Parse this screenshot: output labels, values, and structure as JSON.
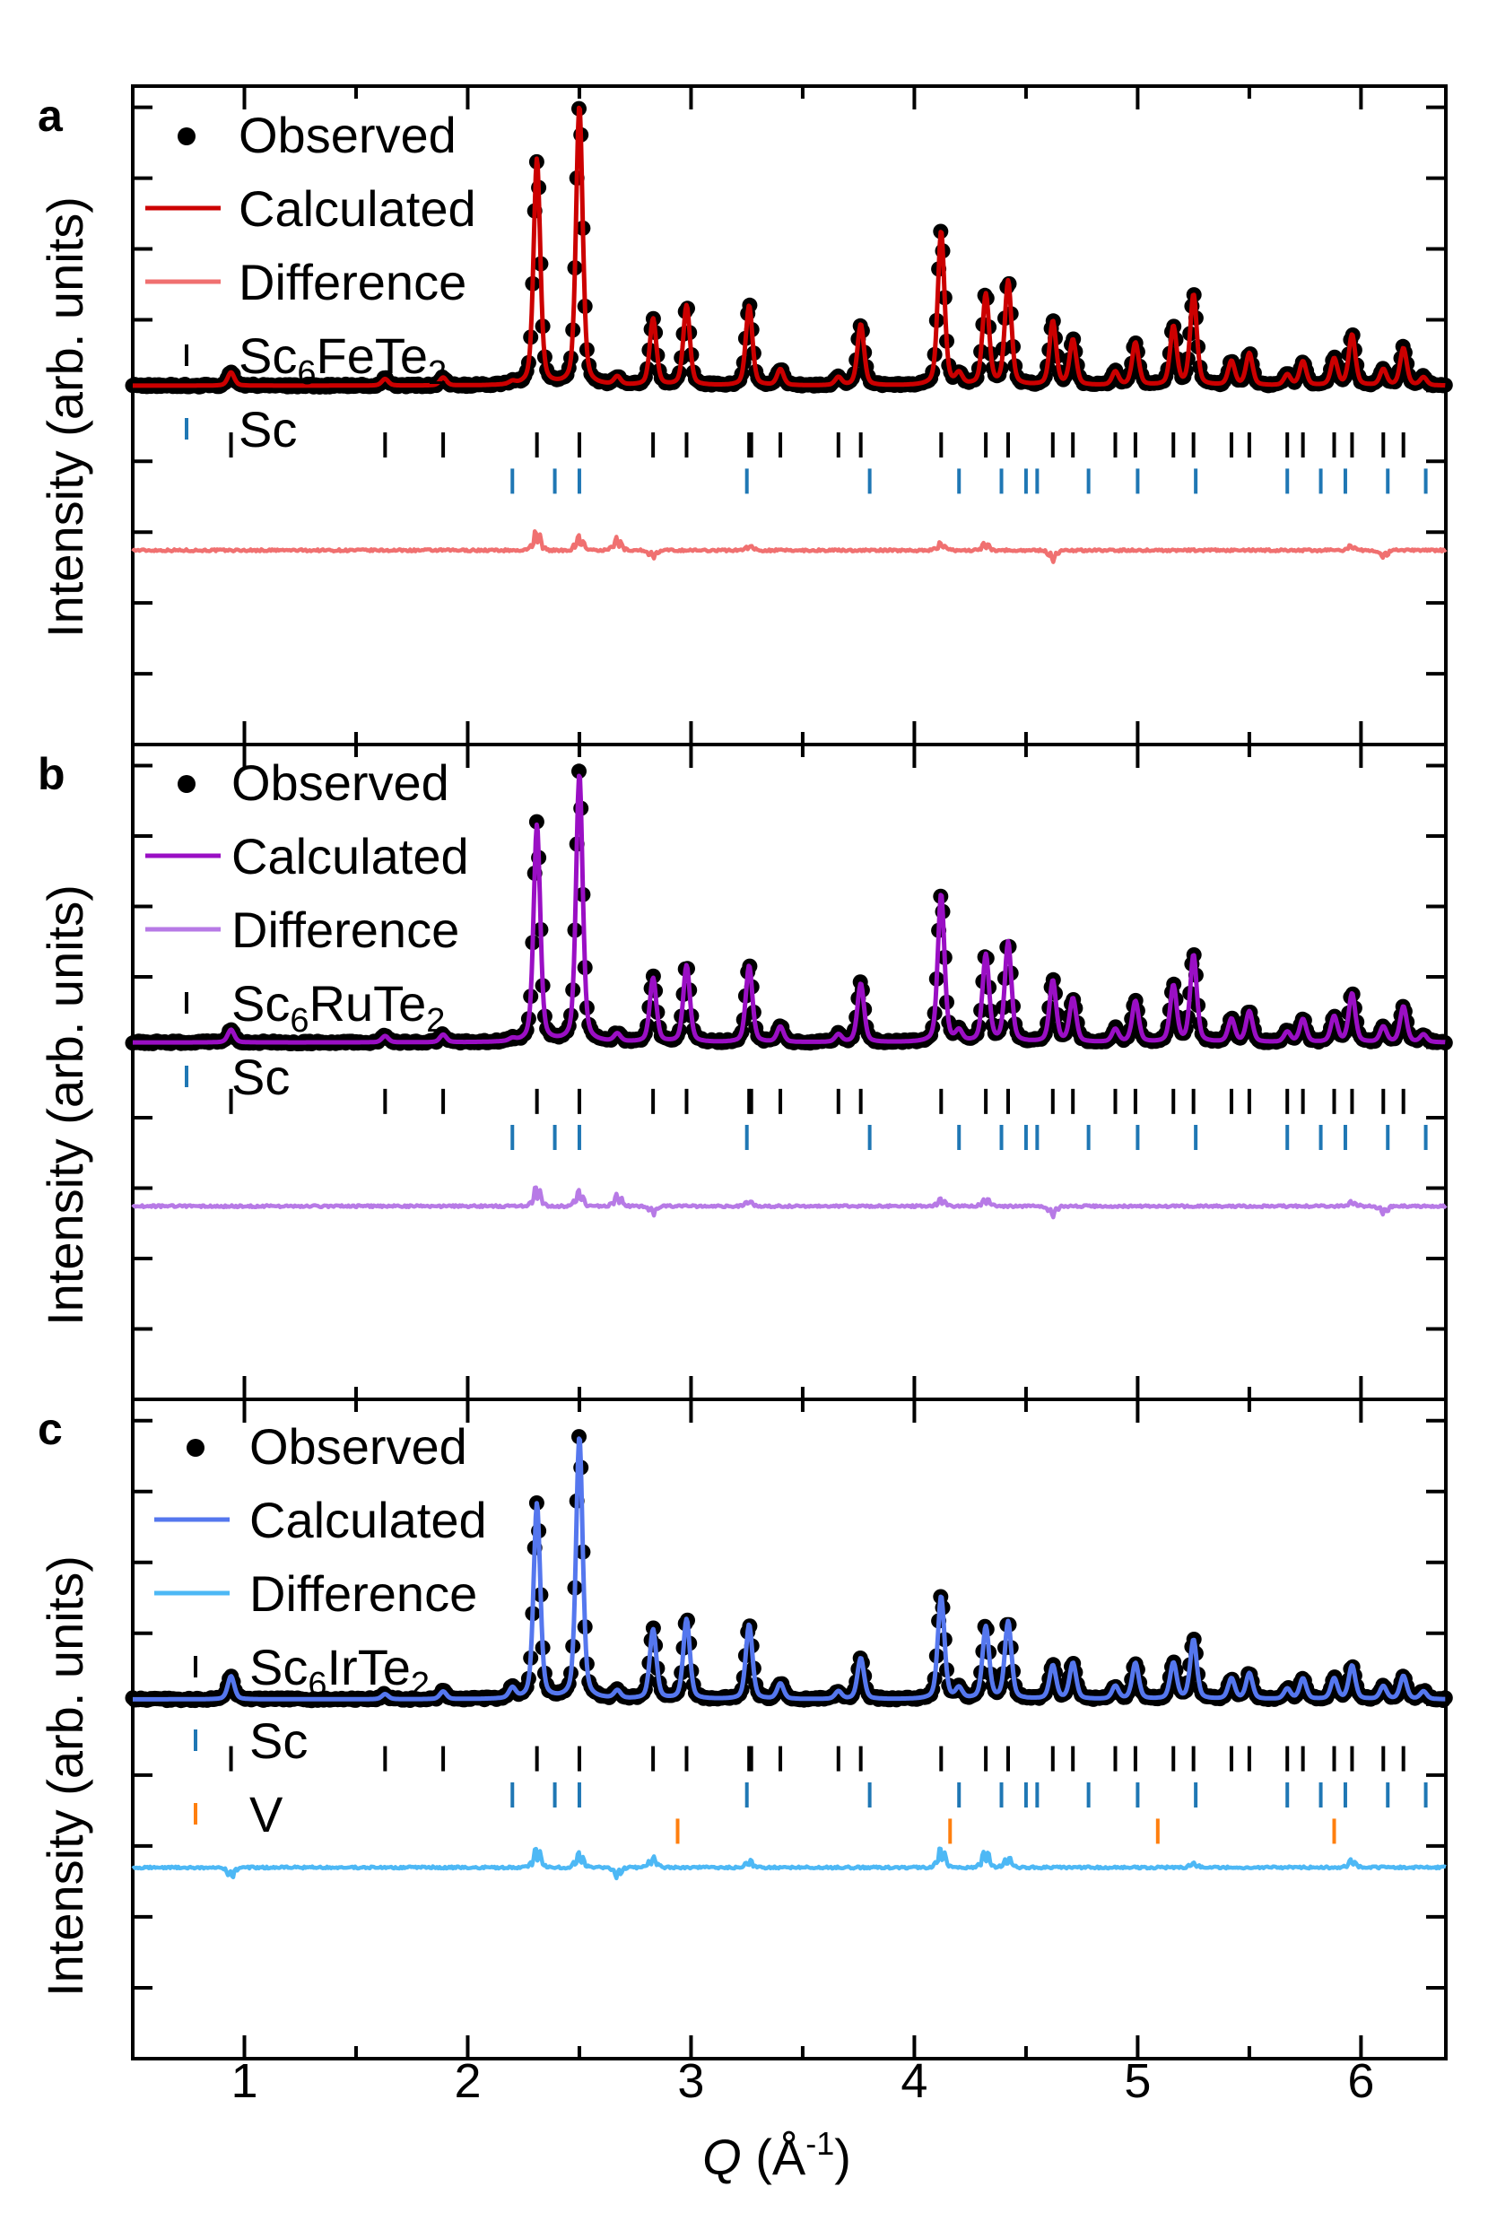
{
  "figure": {
    "xlabel": "Q (Å⁻¹)",
    "xlabel_italic": "Q",
    "xlabel_rest": " (Å",
    "xlabel_sup": "-1",
    "xlabel_close": ")",
    "ylabel": "Intensity (arb. units)",
    "x_ticks": [
      "1",
      "2",
      "3",
      "4",
      "5",
      "6"
    ]
  },
  "chart_data": [
    {
      "panel": "a",
      "type": "line",
      "xlim": [
        0.5,
        6.38
      ],
      "ylabel": "Intensity (arb. units)",
      "grid": false,
      "legend_placement": "top-left",
      "legend": [
        {
          "label": "Observed",
          "kind": "marker",
          "color": "#000000"
        },
        {
          "label": "Calculated",
          "kind": "line",
          "color": "#cc0000"
        },
        {
          "label": "Difference",
          "kind": "line",
          "color": "#f07070"
        },
        {
          "label": "Sc6FeTe2",
          "base": "Sc",
          "sub1": "6",
          "mid": "FeTe",
          "sub2": "2",
          "kind": "tick",
          "color": "#000000"
        },
        {
          "label": "Sc",
          "kind": "tick",
          "color": "#1f77b4"
        }
      ],
      "series_colors": {
        "calculated": "#cc0000",
        "difference": "#f07070"
      },
      "peaks": [
        [
          0.94,
          0.05
        ],
        [
          1.63,
          0.025
        ],
        [
          1.89,
          0.03
        ],
        [
          2.2,
          0.01
        ],
        [
          2.31,
          0.85
        ],
        [
          2.5,
          1.05
        ],
        [
          2.67,
          0.03
        ],
        [
          2.83,
          0.25
        ],
        [
          2.98,
          0.3
        ],
        [
          3.26,
          0.3
        ],
        [
          3.4,
          0.06
        ],
        [
          3.66,
          0.03
        ],
        [
          3.76,
          0.23
        ],
        [
          4.12,
          0.58
        ],
        [
          4.2,
          0.04
        ],
        [
          4.32,
          0.34
        ],
        [
          4.42,
          0.39
        ],
        [
          4.62,
          0.24
        ],
        [
          4.71,
          0.17
        ],
        [
          4.9,
          0.05
        ],
        [
          4.99,
          0.16
        ],
        [
          5.16,
          0.22
        ],
        [
          5.25,
          0.34
        ],
        [
          5.42,
          0.09
        ],
        [
          5.5,
          0.12
        ],
        [
          5.67,
          0.04
        ],
        [
          5.74,
          0.09
        ],
        [
          5.88,
          0.1
        ],
        [
          5.96,
          0.19
        ],
        [
          6.1,
          0.06
        ],
        [
          6.19,
          0.14
        ],
        [
          6.28,
          0.03
        ]
      ],
      "reflections": [
        {
          "phase": "Sc6FeTe2",
          "color": "#000000",
          "q": [
            0.94,
            1.63,
            1.89,
            2.31,
            2.5,
            2.83,
            2.98,
            3.26,
            3.27,
            3.4,
            3.66,
            3.76,
            4.12,
            4.32,
            4.42,
            4.62,
            4.71,
            4.9,
            4.99,
            5.16,
            5.25,
            5.42,
            5.5,
            5.67,
            5.74,
            5.88,
            5.96,
            6.1,
            6.19
          ]
        },
        {
          "phase": "Sc",
          "color": "#1f77b4",
          "q": [
            2.2,
            2.39,
            2.5,
            3.25,
            3.8,
            4.2,
            4.39,
            4.5,
            4.55,
            4.78,
            5.0,
            5.26,
            5.67,
            5.82,
            5.93,
            6.12,
            6.29
          ]
        }
      ],
      "difference_features": [
        [
          2.31,
          0.04
        ],
        [
          2.5,
          0.03
        ],
        [
          2.67,
          0.025
        ],
        [
          2.83,
          -0.015
        ],
        [
          3.26,
          0.01
        ],
        [
          4.12,
          0.015
        ],
        [
          4.32,
          0.015
        ],
        [
          4.62,
          -0.02
        ],
        [
          5.96,
          0.01
        ],
        [
          6.1,
          -0.015
        ]
      ]
    },
    {
      "panel": "b",
      "type": "line",
      "xlim": [
        0.5,
        6.38
      ],
      "ylabel": "Intensity (arb. units)",
      "grid": false,
      "legend_placement": "top-left",
      "legend": [
        {
          "label": "Observed",
          "kind": "marker",
          "color": "#000000"
        },
        {
          "label": "Calculated",
          "kind": "line",
          "color": "#9a0fc4"
        },
        {
          "label": "Difference",
          "kind": "line",
          "color": "#b77ae6"
        },
        {
          "label": "Sc6RuTe2",
          "base": "Sc",
          "sub1": "6",
          "mid": "RuTe",
          "sub2": "2",
          "kind": "tick",
          "color": "#000000"
        },
        {
          "label": "Sc",
          "kind": "tick",
          "color": "#1f77b4"
        }
      ],
      "series_colors": {
        "calculated": "#9a0fc4",
        "difference": "#b77ae6"
      },
      "peaks": [
        [
          0.94,
          0.05
        ],
        [
          1.63,
          0.025
        ],
        [
          1.89,
          0.03
        ],
        [
          2.2,
          0.01
        ],
        [
          2.31,
          0.85
        ],
        [
          2.5,
          1.05
        ],
        [
          2.67,
          0.03
        ],
        [
          2.83,
          0.25
        ],
        [
          2.98,
          0.3
        ],
        [
          3.26,
          0.3
        ],
        [
          3.4,
          0.06
        ],
        [
          3.66,
          0.03
        ],
        [
          3.76,
          0.23
        ],
        [
          4.12,
          0.58
        ],
        [
          4.2,
          0.04
        ],
        [
          4.32,
          0.34
        ],
        [
          4.42,
          0.39
        ],
        [
          4.62,
          0.24
        ],
        [
          4.71,
          0.17
        ],
        [
          4.9,
          0.05
        ],
        [
          4.99,
          0.16
        ],
        [
          5.16,
          0.22
        ],
        [
          5.25,
          0.34
        ],
        [
          5.42,
          0.09
        ],
        [
          5.5,
          0.12
        ],
        [
          5.67,
          0.04
        ],
        [
          5.74,
          0.09
        ],
        [
          5.88,
          0.1
        ],
        [
          5.96,
          0.19
        ],
        [
          6.1,
          0.06
        ],
        [
          6.19,
          0.14
        ],
        [
          6.28,
          0.03
        ]
      ],
      "reflections": [
        {
          "phase": "Sc6RuTe2",
          "color": "#000000",
          "q": [
            0.94,
            1.63,
            1.89,
            2.31,
            2.5,
            2.83,
            2.98,
            3.26,
            3.27,
            3.4,
            3.66,
            3.76,
            4.12,
            4.32,
            4.42,
            4.62,
            4.71,
            4.9,
            4.99,
            5.16,
            5.25,
            5.42,
            5.5,
            5.67,
            5.74,
            5.88,
            5.96,
            6.1,
            6.19
          ]
        },
        {
          "phase": "Sc",
          "color": "#1f77b4",
          "q": [
            2.2,
            2.39,
            2.5,
            3.25,
            3.8,
            4.2,
            4.39,
            4.5,
            4.55,
            4.78,
            5.0,
            5.26,
            5.67,
            5.82,
            5.93,
            6.12,
            6.29
          ]
        }
      ],
      "difference_features": [
        [
          2.31,
          0.04
        ],
        [
          2.5,
          0.03
        ],
        [
          2.67,
          0.025
        ],
        [
          2.83,
          -0.015
        ],
        [
          3.26,
          0.01
        ],
        [
          4.12,
          0.015
        ],
        [
          4.32,
          0.015
        ],
        [
          4.62,
          -0.02
        ],
        [
          5.96,
          0.01
        ],
        [
          6.1,
          -0.015
        ]
      ]
    },
    {
      "panel": "c",
      "type": "line",
      "xlim": [
        0.5,
        6.38
      ],
      "ylabel": "Intensity (arb. units)",
      "grid": false,
      "legend_placement": "top-left",
      "legend": [
        {
          "label": "Observed",
          "kind": "marker",
          "color": "#000000"
        },
        {
          "label": "Calculated",
          "kind": "line",
          "color": "#5577ee"
        },
        {
          "label": "Difference",
          "kind": "line",
          "color": "#4db8f5"
        },
        {
          "label": "Sc6IrTe2",
          "base": "Sc",
          "sub1": "6",
          "mid": "IrTe",
          "sub2": "2",
          "kind": "tick",
          "color": "#000000"
        },
        {
          "label": "Sc",
          "kind": "tick",
          "color": "#1f77b4"
        },
        {
          "label": "V",
          "kind": "tick",
          "color": "#ff7f0e"
        }
      ],
      "series_colors": {
        "calculated": "#5577ee",
        "difference": "#4db8f5"
      },
      "peaks": [
        [
          0.94,
          0.09
        ],
        [
          1.63,
          0.02
        ],
        [
          1.89,
          0.03
        ],
        [
          2.2,
          0.04
        ],
        [
          2.31,
          0.76
        ],
        [
          2.5,
          1.02
        ],
        [
          2.67,
          0.03
        ],
        [
          2.83,
          0.27
        ],
        [
          2.98,
          0.31
        ],
        [
          3.26,
          0.29
        ],
        [
          3.4,
          0.06
        ],
        [
          3.66,
          0.03
        ],
        [
          3.76,
          0.16
        ],
        [
          4.12,
          0.4
        ],
        [
          4.2,
          0.04
        ],
        [
          4.32,
          0.28
        ],
        [
          4.42,
          0.3
        ],
        [
          4.62,
          0.13
        ],
        [
          4.71,
          0.14
        ],
        [
          4.9,
          0.05
        ],
        [
          4.99,
          0.14
        ],
        [
          5.16,
          0.14
        ],
        [
          5.25,
          0.23
        ],
        [
          5.42,
          0.08
        ],
        [
          5.5,
          0.1
        ],
        [
          5.67,
          0.04
        ],
        [
          5.74,
          0.08
        ],
        [
          5.88,
          0.08
        ],
        [
          5.96,
          0.13
        ],
        [
          6.1,
          0.05
        ],
        [
          6.19,
          0.09
        ],
        [
          6.28,
          0.03
        ]
      ],
      "reflections": [
        {
          "phase": "Sc6IrTe2",
          "color": "#000000",
          "q": [
            0.94,
            1.63,
            1.89,
            2.31,
            2.5,
            2.83,
            2.98,
            3.26,
            3.27,
            3.4,
            3.66,
            3.76,
            4.12,
            4.32,
            4.42,
            4.62,
            4.71,
            4.9,
            4.99,
            5.16,
            5.25,
            5.42,
            5.5,
            5.67,
            5.74,
            5.88,
            5.96,
            6.1,
            6.19
          ]
        },
        {
          "phase": "Sc",
          "color": "#1f77b4",
          "q": [
            2.2,
            2.39,
            2.5,
            3.25,
            3.8,
            4.2,
            4.39,
            4.5,
            4.55,
            4.78,
            5.0,
            5.26,
            5.67,
            5.82,
            5.93,
            6.12,
            6.29
          ]
        },
        {
          "phase": "V",
          "color": "#ff7f0e",
          "q": [
            2.94,
            4.16,
            5.09,
            5.88
          ]
        }
      ],
      "difference_features": [
        [
          0.94,
          -0.02
        ],
        [
          2.31,
          0.04
        ],
        [
          2.5,
          0.03
        ],
        [
          2.67,
          -0.02
        ],
        [
          2.83,
          0.02
        ],
        [
          3.26,
          0.015
        ],
        [
          4.12,
          0.04
        ],
        [
          4.32,
          0.035
        ],
        [
          4.42,
          0.02
        ],
        [
          5.25,
          0.01
        ],
        [
          5.96,
          0.015
        ]
      ]
    }
  ]
}
